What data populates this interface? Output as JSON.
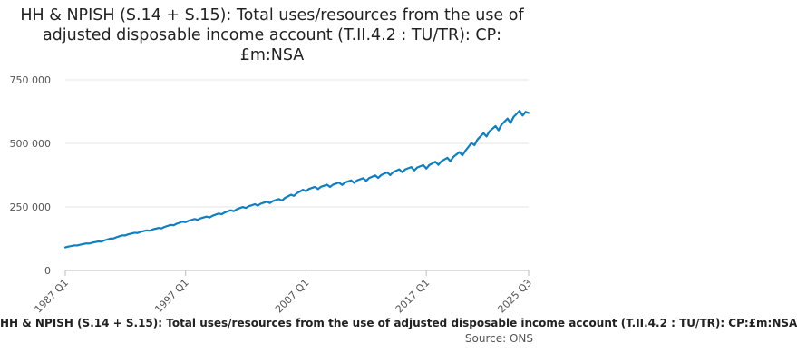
{
  "chart_data": {
    "type": "line",
    "title": "HH & NPISH (S.14 + S.15): Total uses/resources from the use of adjusted disposable income account (T.II.4.2 : TU/TR): CP:£m:NSA",
    "xlabel": "",
    "ylabel": "",
    "ylim": [
      0,
      750000
    ],
    "yticks": [
      0,
      250000,
      500000,
      750000
    ],
    "ytick_labels": [
      "0",
      "250 000",
      "500 000",
      "750 000"
    ],
    "xlim": [
      "1987 Q1",
      "2025 Q3"
    ],
    "xticks": [
      "1987 Q1",
      "1997 Q1",
      "2007 Q1",
      "2017 Q1",
      "2025 Q3"
    ],
    "grid": true,
    "color": "#0f7fc4",
    "anchors": [
      [
        "1987 Q1",
        92000
      ],
      [
        "1990 Q1",
        115000
      ],
      [
        "1992 Q1",
        140000
      ],
      [
        "1995 Q1",
        168000
      ],
      [
        "1997 Q1",
        193000
      ],
      [
        "1999 Q1",
        212000
      ],
      [
        "2002 Q1",
        250000
      ],
      [
        "2005 Q1",
        280000
      ],
      [
        "2007 Q1",
        318000
      ],
      [
        "2009 Q1",
        335000
      ],
      [
        "2012 Q1",
        360000
      ],
      [
        "2015 Q1",
        395000
      ],
      [
        "2017 Q1",
        410000
      ],
      [
        "2019 Q1",
        440000
      ],
      [
        "2020 Q2",
        470000
      ],
      [
        "2021 Q1",
        505000
      ],
      [
        "2022 Q1",
        540000
      ],
      [
        "2023 Q1",
        565000
      ],
      [
        "2024 Q1",
        595000
      ],
      [
        "2025 Q1",
        625000
      ],
      [
        "2025 Q3",
        620000
      ]
    ],
    "seasonal_amplitude": [
      0.012,
      0.025
    ]
  },
  "footer": {
    "title_text": "HH & NPISH (S.14 + S.15): Total uses/resources from the use of adjusted disposable income account (T.II.4.2 : TU/TR): CP:£m:NSA",
    "source_text": "Source: ONS"
  }
}
